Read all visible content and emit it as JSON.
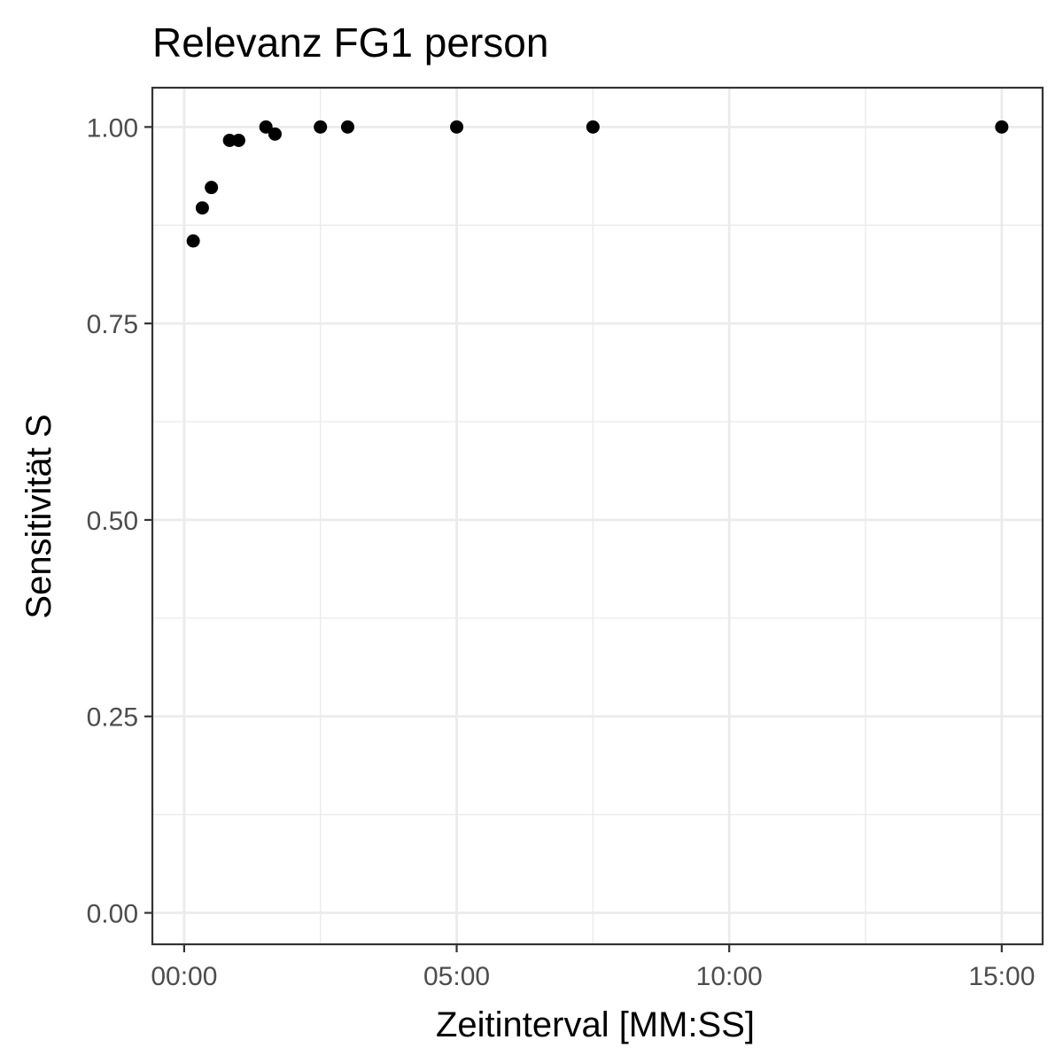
{
  "chart_data": {
    "type": "scatter",
    "title": "Relevanz FG1 person",
    "xlabel": "Zeitinterval [MM:SS]",
    "ylabel": "Sensitivität S",
    "xlim": [
      "-00:35",
      "15:45"
    ],
    "ylim": [
      -0.04,
      1.05
    ],
    "x_ticks": [
      "00:00",
      "05:00",
      "10:00",
      "15:00"
    ],
    "x_minor_ticks": [
      "02:30",
      "07:30",
      "12:30"
    ],
    "y_ticks": [
      "0.00",
      "0.25",
      "0.50",
      "0.75",
      "1.00"
    ],
    "y_minor_ticks": [
      "0.125",
      "0.375",
      "0.625",
      "0.875"
    ],
    "grid": true,
    "point_color": "#000000",
    "grid_color": "#ebebeb",
    "points": [
      {
        "x": "00:10",
        "y": 0.855
      },
      {
        "x": "00:20",
        "y": 0.897
      },
      {
        "x": "00:30",
        "y": 0.923
      },
      {
        "x": "00:50",
        "y": 0.983
      },
      {
        "x": "01:00",
        "y": 0.983
      },
      {
        "x": "01:30",
        "y": 1.0
      },
      {
        "x": "01:40",
        "y": 0.991
      },
      {
        "x": "02:30",
        "y": 1.0
      },
      {
        "x": "03:00",
        "y": 1.0
      },
      {
        "x": "05:00",
        "y": 1.0
      },
      {
        "x": "07:30",
        "y": 1.0
      },
      {
        "x": "15:00",
        "y": 1.0
      }
    ]
  }
}
